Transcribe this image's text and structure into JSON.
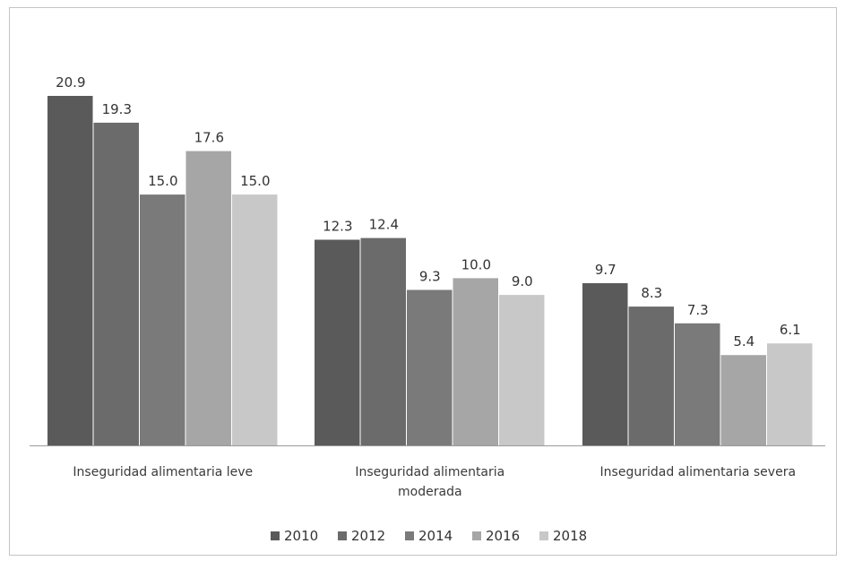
{
  "chart_data": {
    "type": "bar",
    "categories": [
      [
        "Inseguridad alimentaria leve"
      ],
      [
        "Inseguridad alimentaria",
        "moderada"
      ],
      [
        "Inseguridad alimentaria severa"
      ]
    ],
    "series": [
      {
        "name": "2010",
        "values": [
          20.9,
          12.3,
          9.7
        ],
        "color": "#5a5a5a",
        "labels": [
          "20.9",
          "12.3",
          "9.7"
        ]
      },
      {
        "name": "2012",
        "values": [
          19.3,
          12.4,
          8.3
        ],
        "color": "#6b6b6b",
        "labels": [
          "19.3",
          "12.4",
          "8.3"
        ]
      },
      {
        "name": "2014",
        "values": [
          15.0,
          9.3,
          7.3
        ],
        "color": "#7a7a7a",
        "labels": [
          "15.0",
          "9.3",
          "7.3"
        ]
      },
      {
        "name": "2016",
        "values": [
          17.6,
          10.0,
          5.4
        ],
        "color": "#a6a6a6",
        "labels": [
          "17.6",
          "10.0",
          "5.4"
        ]
      },
      {
        "name": "2018",
        "values": [
          15.0,
          9.0,
          6.1
        ],
        "color": "#c8c8c8",
        "labels": [
          "15.0",
          "9.0",
          "6.1"
        ]
      }
    ],
    "ylim": [
      0,
      22
    ],
    "grid": false,
    "legend_position": "bottom"
  }
}
